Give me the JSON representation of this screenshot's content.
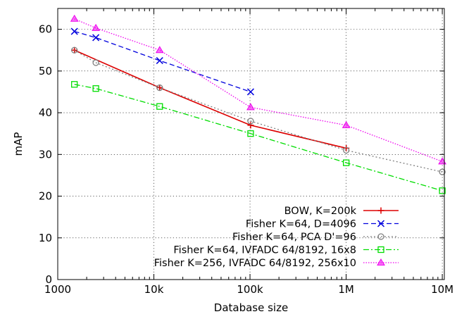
{
  "chart_data": {
    "type": "line",
    "title": "",
    "xlabel": "Database size",
    "ylabel": "mAP",
    "x_scale": "log",
    "xlim": [
      1000,
      10500000
    ],
    "ylim": [
      0,
      65
    ],
    "x_ticks": [
      {
        "value": 1000,
        "label": "1000"
      },
      {
        "value": 10000,
        "label": "10k"
      },
      {
        "value": 100000,
        "label": "100k"
      },
      {
        "value": 1000000,
        "label": "1M"
      },
      {
        "value": 10000000,
        "label": "10M"
      }
    ],
    "y_ticks": [
      0,
      10,
      20,
      30,
      40,
      50,
      60
    ],
    "grid": true,
    "legend_position": "bottom-right",
    "series": [
      {
        "name": "BOW, K=200k",
        "color": "#dd0000",
        "dash": "solid",
        "marker": "plus",
        "points": [
          [
            1491,
            55.0
          ],
          [
            11491,
            46.0
          ],
          [
            101491,
            37.0
          ],
          [
            1001491,
            31.5
          ]
        ]
      },
      {
        "name": "Fisher K=64, D=4096",
        "color": "#0000dd",
        "dash": "dashed",
        "marker": "cross",
        "points": [
          [
            1491,
            59.5
          ],
          [
            2491,
            58.0
          ],
          [
            11491,
            52.5
          ],
          [
            101491,
            45.0
          ]
        ]
      },
      {
        "name": "Fisher K=64, PCA D'=96",
        "color": "#808080",
        "dash": "dotted",
        "marker": "circle",
        "points": [
          [
            1491,
            55.0
          ],
          [
            2491,
            52.0
          ],
          [
            11491,
            46.0
          ],
          [
            101491,
            38.0
          ],
          [
            1001491,
            31.0
          ],
          [
            10001491,
            25.8
          ]
        ]
      },
      {
        "name": "Fisher K=64, IVFADC 64/8192, 16x8",
        "color": "#00dd00",
        "dash": "dashdot",
        "marker": "square",
        "points": [
          [
            1491,
            46.8
          ],
          [
            2491,
            45.8
          ],
          [
            11491,
            41.5
          ],
          [
            101491,
            35.0
          ],
          [
            1001491,
            28.0
          ],
          [
            10001491,
            21.3
          ]
        ]
      },
      {
        "name": "Fisher K=256, IVFADC 64/8192, 256x10",
        "color": "#ee00ee",
        "dash": "fine-dotted",
        "marker": "triangle",
        "points": [
          [
            1491,
            62.5
          ],
          [
            2491,
            60.3
          ],
          [
            11491,
            55.0
          ],
          [
            101491,
            41.3
          ],
          [
            1001491,
            37.0
          ],
          [
            10001491,
            28.3
          ]
        ]
      }
    ]
  }
}
